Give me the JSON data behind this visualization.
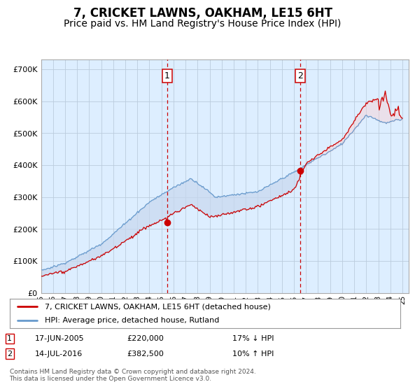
{
  "title": "7, CRICKET LAWNS, OAKHAM, LE15 6HT",
  "subtitle": "Price paid vs. HM Land Registry's House Price Index (HPI)",
  "title_fontsize": 12,
  "subtitle_fontsize": 10,
  "ylabel_ticks": [
    "£0",
    "£100K",
    "£200K",
    "£300K",
    "£400K",
    "£500K",
    "£600K",
    "£700K"
  ],
  "ytick_values": [
    0,
    100000,
    200000,
    300000,
    400000,
    500000,
    600000,
    700000
  ],
  "ylim": [
    0,
    730000
  ],
  "xlim_start": 1995.5,
  "xlim_end": 2025.5,
  "background_color": "#FFFFFF",
  "plot_bg_color": "#DDEEFF",
  "grid_color": "#BBCCDD",
  "hpi_line_color": "#6699CC",
  "price_line_color": "#CC0000",
  "fill_color": "#C8D8EE",
  "sale1_x": 2005.46,
  "sale1_y": 220000,
  "sale2_x": 2016.54,
  "sale2_y": 382500,
  "legend_line1": "7, CRICKET LAWNS, OAKHAM, LE15 6HT (detached house)",
  "legend_line2": "HPI: Average price, detached house, Rutland",
  "sale1_date": "17-JUN-2005",
  "sale1_price": "£220,000",
  "sale1_hpi": "17% ↓ HPI",
  "sale2_date": "14-JUL-2016",
  "sale2_price": "£382,500",
  "sale2_hpi": "10% ↑ HPI",
  "footer": "Contains HM Land Registry data © Crown copyright and database right 2024.\nThis data is licensed under the Open Government Licence v3.0.",
  "xtick_years": [
    1995,
    1996,
    1997,
    1998,
    1999,
    2000,
    2001,
    2002,
    2003,
    2004,
    2005,
    2006,
    2007,
    2008,
    2009,
    2010,
    2011,
    2012,
    2013,
    2014,
    2015,
    2016,
    2017,
    2018,
    2019,
    2020,
    2021,
    2022,
    2023,
    2024,
    2025
  ]
}
